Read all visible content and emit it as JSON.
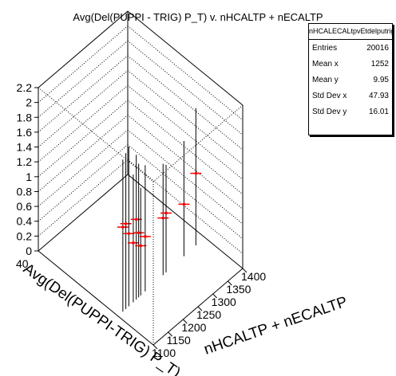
{
  "chart_data": {
    "type": "scatter",
    "title": "Avg(Del(PUPPI - TRIG) P_T) v. nHCALTP + nECALTP",
    "xlabel": "nHCALTP + nECALTP",
    "ylabel": "Avg(Del(PUPPI-TRIG) P_T)",
    "x_ticks": [
      "1100",
      "1150",
      "1200",
      "1250",
      "1300",
      "1350",
      "1400"
    ],
    "y_ticks": [
      "40"
    ],
    "z_ticks": [
      "0",
      "0.2",
      "0.4",
      "0.6",
      "0.8",
      "1",
      "1.2",
      "1.4",
      "1.6",
      "1.8",
      "2",
      "2.2"
    ],
    "z_range": [
      0,
      2.2
    ],
    "points": [
      {
        "x": 1105,
        "z": 1.14,
        "hi": 2.05,
        "lo": 0.0
      },
      {
        "x": 1115,
        "z": 1.15,
        "hi": 2.1,
        "lo": 0.0
      },
      {
        "x": 1125,
        "z": 0.98,
        "hi": 2.15,
        "lo": 0.0
      },
      {
        "x": 1140,
        "z": 0.8,
        "hi": 1.72,
        "lo": 0.0
      },
      {
        "x": 1150,
        "z": 1.08,
        "hi": 1.95,
        "lo": 0.0
      },
      {
        "x": 1158,
        "z": 0.87,
        "hi": 1.8,
        "lo": 0.0
      },
      {
        "x": 1165,
        "z": 0.67,
        "hi": 1.45,
        "lo": 0.0
      },
      {
        "x": 1180,
        "z": 0.74,
        "hi": 1.7,
        "lo": 0.0
      },
      {
        "x": 1240,
        "z": 0.77,
        "hi": 1.5,
        "lo": 0.0
      },
      {
        "x": 1250,
        "z": 0.8,
        "hi": 1.45,
        "lo": 0.0
      },
      {
        "x": 1310,
        "z": 0.7,
        "hi": 1.55,
        "lo": 0.0
      },
      {
        "x": 1350,
        "z": 0.97,
        "hi": 1.85,
        "lo": 0.0
      }
    ],
    "grid": true,
    "legend": "top-right"
  },
  "stats": {
    "name": "nHCALECALtpvEtdelputrig",
    "rows": [
      {
        "label": "Entries",
        "value": "20016"
      },
      {
        "label": "Mean x",
        "value": "1252"
      },
      {
        "label": "Mean y",
        "value": "9.95"
      },
      {
        "label": "Std Dev x",
        "value": "47.93"
      },
      {
        "label": "Std Dev y",
        "value": "16.01"
      }
    ]
  },
  "colors": {
    "marker": "#ff0000",
    "axis": "#000000"
  }
}
